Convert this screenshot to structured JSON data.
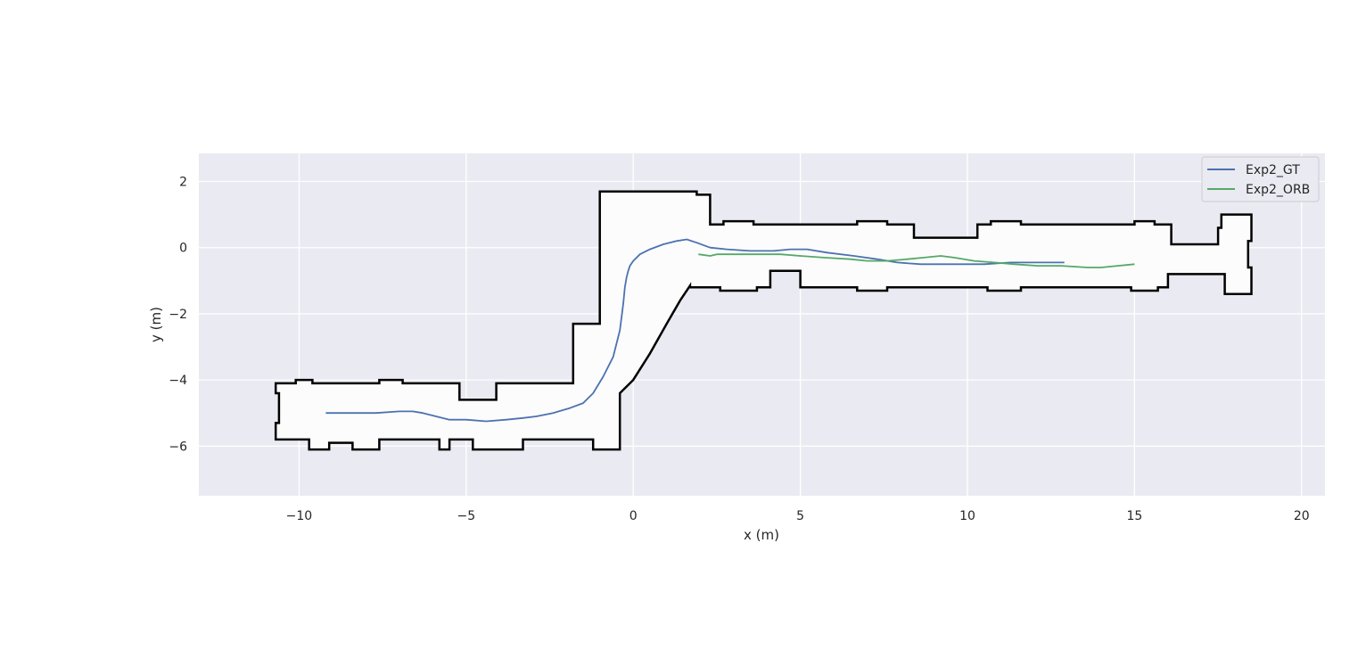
{
  "chart_data": {
    "type": "line",
    "title": "",
    "xlabel": "x (m)",
    "ylabel": "y (m)",
    "xlim": [
      -13,
      20.7
    ],
    "ylim": [
      -7.5,
      2.85
    ],
    "xticks": [
      -10,
      -5,
      0,
      5,
      10,
      15,
      20
    ],
    "yticks": [
      2,
      0,
      -2,
      -4,
      -6
    ],
    "xtick_labels": [
      "−10",
      "−5",
      "0",
      "5",
      "10",
      "15",
      "20"
    ],
    "ytick_labels": [
      "2",
      "0",
      "−2",
      "−4",
      "−6"
    ],
    "grid": true,
    "legend_position": "top-right",
    "background_color": "#eaeaf2",
    "map": {
      "color": "#000000",
      "free_color": "#fcfcfc",
      "outline": [
        [
          -10.7,
          -4.1
        ],
        [
          -10.1,
          -4.1
        ],
        [
          -10.1,
          -4.0
        ],
        [
          -9.6,
          -4.0
        ],
        [
          -9.6,
          -4.1
        ],
        [
          -7.6,
          -4.1
        ],
        [
          -7.6,
          -4.0
        ],
        [
          -6.9,
          -4.0
        ],
        [
          -6.9,
          -4.1
        ],
        [
          -5.2,
          -4.1
        ],
        [
          -5.2,
          -4.6
        ],
        [
          -4.1,
          -4.6
        ],
        [
          -4.1,
          -4.1
        ],
        [
          -1.8,
          -4.1
        ],
        [
          -1.8,
          -2.3
        ],
        [
          -1.0,
          -2.3
        ],
        [
          -1.0,
          1.7
        ],
        [
          1.9,
          1.7
        ],
        [
          1.9,
          1.6
        ],
        [
          2.3,
          1.6
        ],
        [
          2.3,
          0.7
        ],
        [
          2.7,
          0.7
        ],
        [
          2.7,
          0.8
        ],
        [
          3.6,
          0.8
        ],
        [
          3.6,
          0.7
        ],
        [
          6.7,
          0.7
        ],
        [
          6.7,
          0.8
        ],
        [
          7.6,
          0.8
        ],
        [
          7.6,
          0.7
        ],
        [
          8.4,
          0.7
        ],
        [
          8.4,
          0.3
        ],
        [
          10.3,
          0.3
        ],
        [
          10.3,
          0.7
        ],
        [
          10.7,
          0.7
        ],
        [
          10.7,
          0.8
        ],
        [
          11.6,
          0.8
        ],
        [
          11.6,
          0.7
        ],
        [
          15.0,
          0.7
        ],
        [
          15.0,
          0.8
        ],
        [
          15.6,
          0.8
        ],
        [
          15.6,
          0.7
        ],
        [
          16.1,
          0.7
        ],
        [
          16.1,
          0.1
        ],
        [
          17.5,
          0.1
        ],
        [
          17.5,
          0.6
        ],
        [
          17.6,
          0.6
        ],
        [
          17.6,
          1.0
        ],
        [
          18.5,
          1.0
        ],
        [
          18.5,
          0.2
        ],
        [
          18.4,
          0.2
        ],
        [
          18.4,
          -0.6
        ],
        [
          18.5,
          -0.6
        ],
        [
          18.5,
          -1.4
        ],
        [
          17.7,
          -1.4
        ],
        [
          17.7,
          -0.8
        ],
        [
          16.0,
          -0.8
        ],
        [
          16.0,
          -1.2
        ],
        [
          15.7,
          -1.2
        ],
        [
          15.7,
          -1.3
        ],
        [
          14.9,
          -1.3
        ],
        [
          14.9,
          -1.2
        ],
        [
          11.6,
          -1.2
        ],
        [
          11.6,
          -1.3
        ],
        [
          10.6,
          -1.3
        ],
        [
          10.6,
          -1.2
        ],
        [
          7.6,
          -1.2
        ],
        [
          7.6,
          -1.3
        ],
        [
          6.7,
          -1.3
        ],
        [
          6.7,
          -1.2
        ],
        [
          5.0,
          -1.2
        ],
        [
          5.0,
          -0.7
        ],
        [
          4.1,
          -0.7
        ],
        [
          4.1,
          -1.2
        ],
        [
          3.7,
          -1.2
        ],
        [
          3.7,
          -1.3
        ],
        [
          2.6,
          -1.3
        ],
        [
          2.6,
          -1.2
        ],
        [
          1.7,
          -1.2
        ],
        [
          1.7,
          -1.15
        ],
        [
          1.4,
          -1.6
        ],
        [
          1.0,
          -2.3
        ],
        [
          0.5,
          -3.2
        ],
        [
          0.0,
          -4.0
        ],
        [
          -0.4,
          -4.4
        ],
        [
          -0.4,
          -6.1
        ],
        [
          -1.2,
          -6.1
        ],
        [
          -1.2,
          -5.8
        ],
        [
          -3.3,
          -5.8
        ],
        [
          -3.3,
          -6.1
        ],
        [
          -4.8,
          -6.1
        ],
        [
          -4.8,
          -5.8
        ],
        [
          -5.5,
          -5.8
        ],
        [
          -5.5,
          -6.1
        ],
        [
          -5.8,
          -6.1
        ],
        [
          -5.8,
          -5.8
        ],
        [
          -7.6,
          -5.8
        ],
        [
          -7.6,
          -6.1
        ],
        [
          -8.4,
          -6.1
        ],
        [
          -8.4,
          -5.9
        ],
        [
          -9.1,
          -5.9
        ],
        [
          -9.1,
          -6.1
        ],
        [
          -9.7,
          -6.1
        ],
        [
          -9.7,
          -5.8
        ],
        [
          -10.7,
          -5.8
        ],
        [
          -10.7,
          -5.3
        ],
        [
          -10.6,
          -5.3
        ],
        [
          -10.6,
          -4.4
        ],
        [
          -10.7,
          -4.4
        ]
      ]
    },
    "series": [
      {
        "name": "Exp2_GT",
        "color": "#4c72b0",
        "x": [
          -9.2,
          -8.5,
          -7.7,
          -7.0,
          -6.6,
          -6.3,
          -5.9,
          -5.5,
          -5.0,
          -4.4,
          -3.8,
          -3.3,
          -2.9,
          -2.4,
          -1.9,
          -1.5,
          -1.2,
          -0.9,
          -0.6,
          -0.4,
          -0.3,
          -0.25,
          -0.2,
          -0.15,
          -0.1,
          0.0,
          0.2,
          0.5,
          0.9,
          1.3,
          1.6,
          1.9,
          2.3,
          2.8,
          3.5,
          4.2,
          4.7,
          5.2,
          5.8,
          6.6,
          7.3,
          7.9,
          8.6,
          9.5,
          10.5,
          11.3,
          12.0,
          12.5,
          12.9
        ],
        "y": [
          -5.0,
          -5.0,
          -5.0,
          -4.95,
          -4.95,
          -5.0,
          -5.1,
          -5.2,
          -5.2,
          -5.25,
          -5.2,
          -5.15,
          -5.1,
          -5.0,
          -4.85,
          -4.7,
          -4.4,
          -3.9,
          -3.3,
          -2.5,
          -1.7,
          -1.2,
          -0.9,
          -0.7,
          -0.55,
          -0.4,
          -0.2,
          -0.05,
          0.1,
          0.2,
          0.25,
          0.15,
          0.0,
          -0.05,
          -0.1,
          -0.1,
          -0.05,
          -0.05,
          -0.15,
          -0.25,
          -0.35,
          -0.45,
          -0.5,
          -0.5,
          -0.5,
          -0.45,
          -0.45,
          -0.45,
          -0.45
        ]
      },
      {
        "name": "Exp2_ORB",
        "color": "#55a868",
        "x": [
          1.95,
          2.3,
          2.5,
          3.1,
          3.8,
          4.4,
          5.0,
          5.7,
          6.5,
          7.0,
          7.6,
          8.2,
          8.7,
          9.2,
          9.6,
          10.2,
          10.8,
          11.4,
          12.1,
          12.8,
          13.6,
          14.0,
          14.5,
          15.0
        ],
        "y": [
          -0.2,
          -0.25,
          -0.2,
          -0.2,
          -0.2,
          -0.2,
          -0.25,
          -0.3,
          -0.35,
          -0.4,
          -0.4,
          -0.35,
          -0.3,
          -0.25,
          -0.3,
          -0.4,
          -0.45,
          -0.5,
          -0.55,
          -0.55,
          -0.6,
          -0.6,
          -0.55,
          -0.5
        ]
      }
    ]
  }
}
